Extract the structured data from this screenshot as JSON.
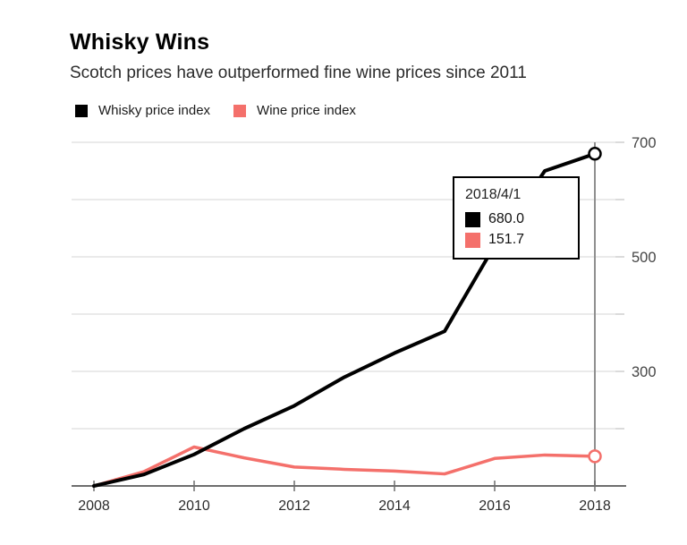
{
  "header": {
    "title": "Whisky Wins",
    "subtitle": "Scotch prices have outperformed fine wine prices since 2011"
  },
  "legend": [
    {
      "label": "Whisky price index",
      "color": "#000000"
    },
    {
      "label": "Wine price index",
      "color": "#f4706b"
    }
  ],
  "tooltip": {
    "date": "2018/4/1",
    "rows": [
      {
        "series": "Whisky price index",
        "value": "680.0",
        "color": "#000000"
      },
      {
        "series": "Wine price index",
        "value": "151.7",
        "color": "#f4706b"
      }
    ]
  },
  "chart_data": {
    "type": "line",
    "title": "Whisky Wins",
    "subtitle": "Scotch prices have outperformed fine wine prices since 2011",
    "x": [
      2008,
      2009,
      2010,
      2011,
      2012,
      2013,
      2014,
      2015,
      2016,
      2017,
      2018
    ],
    "last_point_date": "2018/4/1",
    "series": [
      {
        "name": "Whisky price index",
        "color": "#000000",
        "values": [
          100,
          120,
          155,
          200,
          240,
          290,
          332,
          370,
          520,
          650,
          680
        ]
      },
      {
        "name": "Wine price index",
        "color": "#f4706b",
        "values": [
          100,
          125,
          168,
          149,
          133,
          129,
          126,
          121,
          148,
          154,
          151.7
        ]
      }
    ],
    "xticks": [
      2008,
      2010,
      2012,
      2014,
      2016,
      2018
    ],
    "yticks_all": [
      200,
      300,
      400,
      500,
      600,
      700
    ],
    "yticks_labeled": [
      300,
      500,
      700
    ],
    "ylim": [
      100,
      700
    ],
    "xlim": [
      2008,
      2018
    ],
    "grid": "horizontal-only",
    "legend_position": "top-left",
    "crosshair_x": 2018,
    "end_markers": true
  },
  "colors": {
    "background": "#ffffff",
    "gridline": "#e4e4e4",
    "axis": "#6e6e6e",
    "crosshair": "#8f8f8f",
    "right_tick": "#cfcfcf",
    "x_label": "#2b2b2b",
    "y_label": "#454545"
  }
}
